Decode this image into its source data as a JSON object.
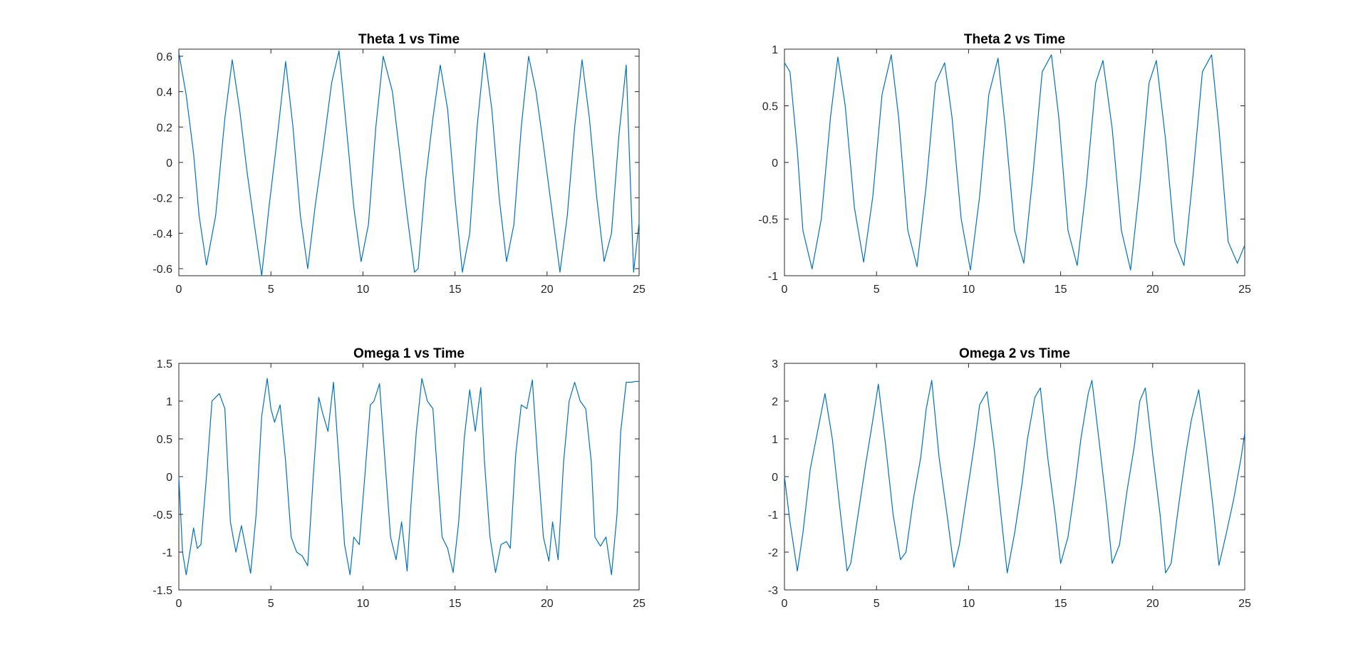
{
  "figure": {
    "background": "#ffffff",
    "axis_color": "#262626",
    "line_color": "#0072BD"
  },
  "chart_data": [
    {
      "type": "line",
      "title": "Theta 1 vs Time",
      "xlabel": "",
      "ylabel": "",
      "xlim": [
        0,
        25
      ],
      "ylim": [
        -0.64,
        0.64
      ],
      "x_ticks": [
        0,
        5,
        10,
        15,
        20,
        25
      ],
      "x_tick_labels": [
        "0",
        "5",
        "10",
        "15",
        "20",
        "25"
      ],
      "y_ticks": [
        -0.6,
        -0.4,
        -0.2,
        0,
        0.2,
        0.4,
        0.6
      ],
      "y_tick_labels": [
        "-0.6",
        "-0.4",
        "-0.2",
        "0",
        "0.2",
        "0.4",
        "0.6"
      ],
      "grid": false,
      "series": [
        {
          "x": [
            0,
            0.4,
            0.8,
            1.1,
            1.5,
            2.0,
            2.5,
            2.9,
            3.3,
            3.7,
            4.1,
            4.5,
            4.9,
            5.3,
            5.8,
            6.2,
            6.6,
            7.0,
            7.4,
            7.8,
            8.3,
            8.7,
            9.1,
            9.5,
            9.9,
            10.3,
            10.7,
            11.1,
            11.6,
            12.0,
            12.4,
            12.8,
            13.0,
            13.4,
            13.8,
            14.2,
            14.6,
            15.0,
            15.4,
            15.8,
            16.2,
            16.6,
            17.0,
            17.4,
            17.8,
            18.2,
            18.6,
            19.0,
            19.4,
            19.8,
            20.3,
            20.7,
            21.1,
            21.5,
            21.9,
            22.3,
            22.7,
            23.1,
            23.5,
            23.9,
            24.3,
            24.7,
            25.0
          ],
          "y": [
            0.62,
            0.38,
            0.05,
            -0.3,
            -0.58,
            -0.3,
            0.25,
            0.58,
            0.3,
            -0.05,
            -0.35,
            -0.64,
            -0.25,
            0.1,
            0.57,
            0.2,
            -0.3,
            -0.6,
            -0.25,
            0.05,
            0.45,
            0.63,
            0.2,
            -0.25,
            -0.56,
            -0.35,
            0.2,
            0.6,
            0.4,
            0.05,
            -0.3,
            -0.62,
            -0.6,
            -0.1,
            0.25,
            0.55,
            0.3,
            -0.2,
            -0.62,
            -0.4,
            0.2,
            0.62,
            0.3,
            -0.2,
            -0.56,
            -0.35,
            0.2,
            0.6,
            0.4,
            0.1,
            -0.3,
            -0.62,
            -0.3,
            0.2,
            0.58,
            0.25,
            -0.2,
            -0.56,
            -0.4,
            0.15,
            0.55,
            -0.62,
            -0.34
          ]
        }
      ]
    },
    {
      "type": "line",
      "title": "Theta 2 vs Time",
      "xlabel": "",
      "ylabel": "",
      "xlim": [
        0,
        25
      ],
      "ylim": [
        -1,
        1
      ],
      "x_ticks": [
        0,
        5,
        10,
        15,
        20,
        25
      ],
      "x_tick_labels": [
        "0",
        "5",
        "10",
        "15",
        "20",
        "25"
      ],
      "y_ticks": [
        -1,
        -0.5,
        0,
        0.5,
        1
      ],
      "y_tick_labels": [
        "-1",
        "-0.5",
        "0",
        "0.5",
        "1"
      ],
      "grid": false,
      "series": [
        {
          "x": [
            0,
            0.3,
            0.7,
            1.0,
            1.5,
            2.0,
            2.5,
            2.9,
            3.3,
            3.8,
            4.3,
            4.8,
            5.3,
            5.8,
            6.2,
            6.7,
            7.2,
            7.7,
            8.2,
            8.7,
            9.1,
            9.6,
            10.1,
            10.6,
            11.1,
            11.6,
            12.0,
            12.5,
            13.0,
            13.5,
            14.0,
            14.5,
            14.9,
            15.4,
            15.9,
            16.4,
            16.9,
            17.3,
            17.8,
            18.3,
            18.8,
            19.3,
            19.8,
            20.2,
            20.7,
            21.2,
            21.7,
            22.2,
            22.7,
            23.2,
            23.6,
            24.1,
            24.6,
            25.0
          ],
          "y": [
            0.88,
            0.8,
            0.1,
            -0.6,
            -0.94,
            -0.5,
            0.4,
            0.93,
            0.5,
            -0.4,
            -0.88,
            -0.3,
            0.6,
            0.95,
            0.4,
            -0.6,
            -0.92,
            -0.2,
            0.7,
            0.88,
            0.4,
            -0.5,
            -0.95,
            -0.3,
            0.6,
            0.92,
            0.3,
            -0.6,
            -0.89,
            -0.1,
            0.8,
            0.95,
            0.4,
            -0.6,
            -0.91,
            -0.2,
            0.7,
            0.9,
            0.3,
            -0.6,
            -0.95,
            -0.2,
            0.7,
            0.9,
            0.2,
            -0.7,
            -0.91,
            -0.1,
            0.8,
            0.95,
            0.3,
            -0.7,
            -0.89,
            -0.73
          ]
        }
      ]
    },
    {
      "type": "line",
      "title": "Omega 1 vs Time",
      "xlabel": "",
      "ylabel": "",
      "xlim": [
        0,
        25
      ],
      "ylim": [
        -1.5,
        1.5
      ],
      "x_ticks": [
        0,
        5,
        10,
        15,
        20,
        25
      ],
      "x_tick_labels": [
        "0",
        "5",
        "10",
        "15",
        "20",
        "25"
      ],
      "y_ticks": [
        -1.5,
        -1,
        -0.5,
        0,
        0.5,
        1,
        1.5
      ],
      "y_tick_labels": [
        "-1.5",
        "-1",
        "-0.5",
        "0",
        "0.5",
        "1",
        "1.5"
      ],
      "grid": false,
      "series": [
        {
          "x": [
            0,
            0.2,
            0.4,
            0.6,
            0.8,
            1.0,
            1.2,
            1.5,
            1.8,
            2.0,
            2.2,
            2.5,
            2.8,
            3.1,
            3.4,
            3.6,
            3.9,
            4.2,
            4.5,
            4.8,
            5.0,
            5.2,
            5.5,
            5.8,
            6.1,
            6.4,
            6.7,
            7.0,
            7.3,
            7.6,
            7.8,
            8.1,
            8.4,
            8.7,
            9.0,
            9.3,
            9.5,
            9.8,
            10.1,
            10.4,
            10.6,
            10.9,
            11.2,
            11.5,
            11.8,
            12.1,
            12.4,
            12.6,
            12.9,
            13.2,
            13.5,
            13.8,
            14.0,
            14.3,
            14.6,
            14.9,
            15.2,
            15.5,
            15.8,
            16.1,
            16.4,
            16.6,
            16.9,
            17.2,
            17.5,
            17.8,
            18.0,
            18.3,
            18.6,
            18.9,
            19.2,
            19.5,
            19.8,
            20.1,
            20.3,
            20.6,
            20.9,
            21.2,
            21.5,
            21.8,
            22.1,
            22.4,
            22.6,
            22.9,
            23.2,
            23.5,
            23.8,
            24.0,
            24.3,
            24.6,
            24.8,
            25.0
          ],
          "y": [
            0.0,
            -1.0,
            -1.3,
            -1.0,
            -0.68,
            -0.95,
            -0.9,
            0.0,
            1.0,
            1.05,
            1.1,
            0.9,
            -0.6,
            -1.0,
            -0.65,
            -0.9,
            -1.28,
            -0.5,
            0.8,
            1.3,
            0.9,
            0.72,
            0.95,
            0.2,
            -0.8,
            -1.0,
            -1.05,
            -1.18,
            0.0,
            1.05,
            0.85,
            0.6,
            1.25,
            0.2,
            -0.9,
            -1.3,
            -0.8,
            -0.9,
            0.0,
            0.95,
            1.0,
            1.23,
            0.2,
            -0.8,
            -1.1,
            -0.6,
            -1.25,
            -0.4,
            0.6,
            1.3,
            1.0,
            0.9,
            0.2,
            -0.8,
            -0.95,
            -1.27,
            -0.6,
            0.5,
            1.15,
            0.6,
            1.18,
            0.2,
            -0.8,
            -1.27,
            -0.9,
            -0.86,
            -0.95,
            0.3,
            0.95,
            0.9,
            1.28,
            0.2,
            -0.8,
            -1.12,
            -0.6,
            -1.1,
            0.2,
            1.0,
            1.25,
            1.0,
            0.9,
            0.2,
            -0.8,
            -0.92,
            -0.8,
            -1.3,
            -0.5,
            0.6,
            1.25,
            1.25,
            1.26,
            1.26
          ]
        }
      ]
    },
    {
      "type": "line",
      "title": "Omega 2 vs Time",
      "xlabel": "",
      "ylabel": "",
      "xlim": [
        0,
        25
      ],
      "ylim": [
        -3,
        3
      ],
      "x_ticks": [
        0,
        5,
        10,
        15,
        20,
        25
      ],
      "x_tick_labels": [
        "0",
        "5",
        "10",
        "15",
        "20",
        "25"
      ],
      "y_ticks": [
        -3,
        -2,
        -1,
        0,
        1,
        2,
        3
      ],
      "y_tick_labels": [
        "-3",
        "-2",
        "-1",
        "0",
        "1",
        "2",
        "3"
      ],
      "grid": false,
      "series": [
        {
          "x": [
            0,
            0.3,
            0.7,
            1.0,
            1.4,
            1.8,
            2.2,
            2.6,
            3.0,
            3.4,
            3.6,
            4.0,
            4.4,
            4.8,
            5.1,
            5.5,
            5.9,
            6.3,
            6.6,
            7.0,
            7.4,
            7.7,
            8.0,
            8.4,
            8.8,
            9.2,
            9.5,
            9.9,
            10.3,
            10.6,
            11.0,
            11.4,
            11.8,
            12.1,
            12.5,
            12.9,
            13.2,
            13.6,
            13.9,
            14.3,
            14.7,
            15.0,
            15.4,
            15.8,
            16.1,
            16.5,
            16.7,
            17.1,
            17.5,
            17.8,
            18.2,
            18.6,
            19.0,
            19.3,
            19.6,
            20.0,
            20.4,
            20.7,
            21.0,
            21.4,
            21.8,
            22.1,
            22.5,
            22.9,
            23.3,
            23.6,
            24.0,
            24.4,
            24.8,
            25.0
          ],
          "y": [
            0.0,
            -1.2,
            -2.5,
            -1.5,
            0.2,
            1.2,
            2.2,
            1.0,
            -0.8,
            -2.5,
            -2.3,
            -1.0,
            0.3,
            1.5,
            2.45,
            0.8,
            -1.0,
            -2.2,
            -2.0,
            -0.6,
            0.5,
            1.8,
            2.55,
            0.5,
            -0.9,
            -2.4,
            -1.8,
            -0.5,
            0.8,
            1.9,
            2.25,
            0.7,
            -1.2,
            -2.55,
            -1.5,
            -0.2,
            1.0,
            2.1,
            2.35,
            0.5,
            -1.0,
            -2.3,
            -1.6,
            -0.2,
            1.0,
            2.2,
            2.55,
            0.9,
            -0.8,
            -2.3,
            -1.8,
            -0.4,
            0.8,
            2.0,
            2.35,
            0.6,
            -1.0,
            -2.55,
            -2.3,
            -0.8,
            0.6,
            1.5,
            2.3,
            0.8,
            -0.9,
            -2.35,
            -1.5,
            -0.6,
            0.5,
            1.15
          ]
        }
      ]
    }
  ]
}
